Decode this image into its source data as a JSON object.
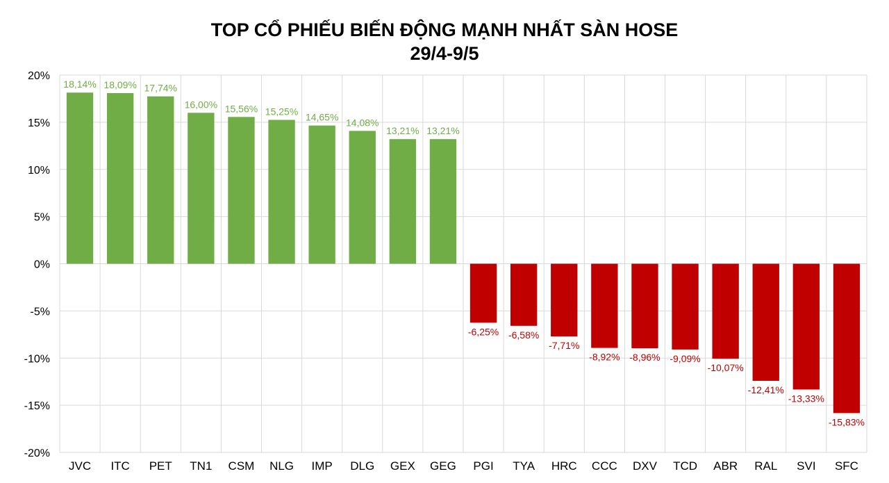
{
  "chart_data": {
    "type": "bar",
    "title": "TOP CỔ PHIẾU BIẾN ĐỘNG MẠNH NHẤT SÀN HOSE",
    "subtitle": "29/4-9/5",
    "xlabel": "",
    "ylabel": "",
    "ylim": [
      -20,
      20
    ],
    "yticks": [
      20,
      15,
      10,
      5,
      0,
      -5,
      -10,
      -15,
      -20
    ],
    "ytick_labels": [
      "20%",
      "15%",
      "10%",
      "5%",
      "0%",
      "-5%",
      "-10%",
      "-15%",
      "-20%"
    ],
    "grid": true,
    "categories": [
      "JVC",
      "ITC",
      "PET",
      "TN1",
      "CSM",
      "NLG",
      "IMP",
      "DLG",
      "GEX",
      "GEG",
      "PGI",
      "TYA",
      "HRC",
      "CCC",
      "DXV",
      "TCD",
      "ABR",
      "RAL",
      "SVI",
      "SFC"
    ],
    "values": [
      18.14,
      18.09,
      17.74,
      16.0,
      15.56,
      15.25,
      14.65,
      14.08,
      13.21,
      13.21,
      -6.25,
      -6.58,
      -7.71,
      -8.92,
      -8.96,
      -9.09,
      -10.07,
      -12.41,
      -13.33,
      -15.83
    ],
    "data_labels": [
      "18,14%",
      "18,09%",
      "17,74%",
      "16,00%",
      "15,56%",
      "15,25%",
      "14,65%",
      "14,08%",
      "13,21%",
      "13,21%",
      "-6,25%",
      "-6,58%",
      "-7,71%",
      "-8,92%",
      "-8,96%",
      "-9,09%",
      "-10,07%",
      "-12,41%",
      "-13,33%",
      "-15,83%"
    ],
    "colors": {
      "positive": "#70AD47",
      "negative": "#C00000",
      "grid": "#D9D9D9",
      "text": "#000000"
    }
  }
}
